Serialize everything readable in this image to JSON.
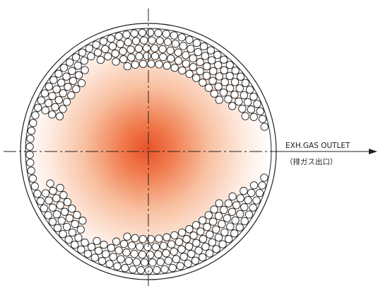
{
  "outlet": {
    "label": "EXH.GAS OUTLET",
    "sublabel": "（排ガス出口）"
  }
}
